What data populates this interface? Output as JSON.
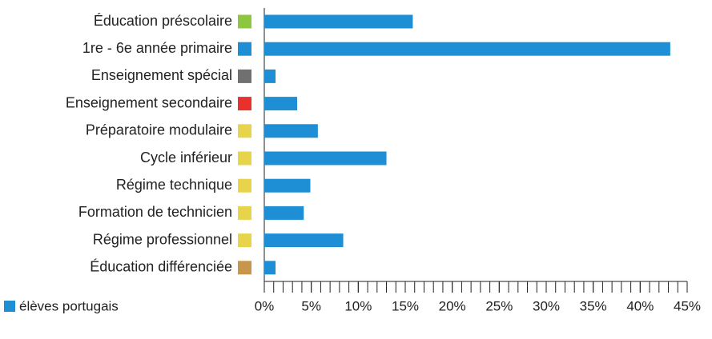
{
  "chart_data": {
    "type": "bar",
    "orientation": "horizontal",
    "categories": [
      "Éducation préscolaire",
      "1re - 6e année primaire",
      "Enseignement spécial",
      "Enseignement secondaire",
      "Préparatoire modulaire",
      "Cycle inférieur",
      "Régime technique",
      "Formation de technicien",
      "Régime professionnel",
      "Éducation différenciée"
    ],
    "marker_colors": [
      "#8dc63f",
      "#1e8fd5",
      "#707070",
      "#e8302e",
      "#e8d44a",
      "#e8d44a",
      "#e8d44a",
      "#e8d44a",
      "#e8d44a",
      "#c8964a"
    ],
    "series": [
      {
        "name": "élèves portugais",
        "color": "#1e8fd5",
        "values": [
          15.8,
          43.2,
          1.2,
          3.5,
          5.7,
          13.0,
          4.9,
          4.2,
          8.4,
          1.2
        ]
      }
    ],
    "xlim": [
      0,
      45
    ],
    "xticks": [
      {
        "value": 0,
        "label": "0%"
      },
      {
        "value": 5,
        "label": "5%"
      },
      {
        "value": 10,
        "label": "10%"
      },
      {
        "value": 15,
        "label": "15%"
      },
      {
        "value": 20,
        "label": "20%"
      },
      {
        "value": 25,
        "label": "25%"
      },
      {
        "value": 30,
        "label": "30%"
      },
      {
        "value": 35,
        "label": "35%"
      },
      {
        "value": 40,
        "label": "40%"
      },
      {
        "value": 45,
        "label": "45%"
      }
    ],
    "xminorticks": [
      0,
      1,
      2,
      3,
      4,
      5,
      6,
      7,
      8,
      9,
      10,
      11,
      12,
      13,
      14,
      15,
      16,
      17,
      18,
      19,
      20,
      21,
      22,
      23,
      24,
      25,
      26,
      27,
      28,
      29,
      30,
      31,
      32,
      33,
      34,
      35,
      36,
      37,
      38,
      39,
      40,
      41,
      42,
      43,
      44,
      45
    ],
    "legend": "bottom-left"
  }
}
